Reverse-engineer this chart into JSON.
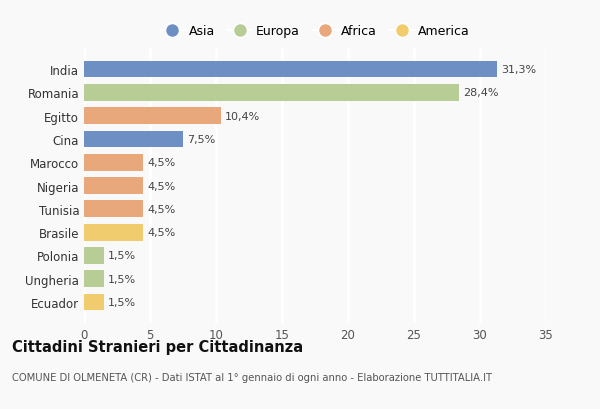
{
  "countries": [
    "India",
    "Romania",
    "Egitto",
    "Cina",
    "Marocco",
    "Nigeria",
    "Tunisia",
    "Brasile",
    "Polonia",
    "Ungheria",
    "Ecuador"
  ],
  "values": [
    31.3,
    28.4,
    10.4,
    7.5,
    4.5,
    4.5,
    4.5,
    4.5,
    1.5,
    1.5,
    1.5
  ],
  "labels": [
    "31,3%",
    "28,4%",
    "10,4%",
    "7,5%",
    "4,5%",
    "4,5%",
    "4,5%",
    "4,5%",
    "1,5%",
    "1,5%",
    "1,5%"
  ],
  "continents": [
    "Asia",
    "Europa",
    "Africa",
    "Asia",
    "Africa",
    "Africa",
    "Africa",
    "America",
    "Europa",
    "Europa",
    "America"
  ],
  "continent_colors": {
    "Asia": "#6e8fc4",
    "Europa": "#b8cd96",
    "Africa": "#e8a87c",
    "America": "#f0cc6e"
  },
  "legend_order": [
    "Asia",
    "Europa",
    "Africa",
    "America"
  ],
  "title": "Cittadini Stranieri per Cittadinanza",
  "subtitle": "COMUNE DI OLMENETA (CR) - Dati ISTAT al 1° gennaio di ogni anno - Elaborazione TUTTITALIA.IT",
  "xlim": [
    0,
    35
  ],
  "xticks": [
    0,
    5,
    10,
    15,
    20,
    25,
    30,
    35
  ],
  "background_color": "#f9f9f9",
  "grid_color": "#ffffff",
  "bar_height": 0.72
}
